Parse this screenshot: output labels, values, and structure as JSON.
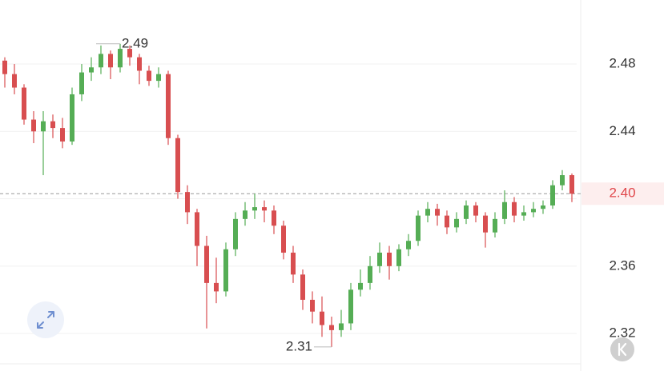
{
  "chart_data": {
    "type": "candlestick",
    "open": [
      2.482,
      2.474,
      2.466,
      2.447,
      2.44,
      2.446,
      2.442,
      2.434,
      2.462,
      2.475,
      2.478,
      2.486,
      2.478,
      2.489,
      2.484,
      2.476,
      2.47,
      2.474,
      2.436,
      2.404,
      2.392,
      2.372,
      2.35,
      2.345,
      2.37,
      2.388,
      2.393,
      2.395,
      2.393,
      2.384,
      2.368,
      2.355,
      2.34,
      2.333,
      2.325,
      2.322,
      2.326,
      2.346,
      2.35,
      2.36,
      2.368,
      2.36,
      2.37,
      2.375,
      2.39,
      2.394,
      2.39,
      2.383,
      2.388,
      2.396,
      2.39,
      2.38,
      2.388,
      2.398,
      2.39,
      2.392,
      2.394,
      2.396,
      2.408,
      2.414
    ],
    "high": [
      2.484,
      2.48,
      2.468,
      2.452,
      2.452,
      2.45,
      2.448,
      2.466,
      2.48,
      2.484,
      2.491,
      2.488,
      2.492,
      2.491,
      2.486,
      2.479,
      2.478,
      2.476,
      2.438,
      2.408,
      2.394,
      2.378,
      2.365,
      2.374,
      2.392,
      2.398,
      2.403,
      2.399,
      2.396,
      2.387,
      2.372,
      2.358,
      2.345,
      2.342,
      2.33,
      2.334,
      2.35,
      2.358,
      2.366,
      2.374,
      2.372,
      2.373,
      2.379,
      2.393,
      2.398,
      2.397,
      2.393,
      2.392,
      2.399,
      2.398,
      2.392,
      2.392,
      2.405,
      2.401,
      2.396,
      2.398,
      2.399,
      2.411,
      2.417,
      2.415
    ],
    "low": [
      2.466,
      2.462,
      2.444,
      2.433,
      2.414,
      2.436,
      2.43,
      2.432,
      2.458,
      2.47,
      2.474,
      2.471,
      2.475,
      2.479,
      2.468,
      2.467,
      2.466,
      2.432,
      2.4,
      2.385,
      2.36,
      2.323,
      2.338,
      2.342,
      2.366,
      2.384,
      2.388,
      2.386,
      2.379,
      2.364,
      2.35,
      2.334,
      2.326,
      2.318,
      2.312,
      2.318,
      2.322,
      2.342,
      2.346,
      2.356,
      2.352,
      2.357,
      2.366,
      2.372,
      2.386,
      2.384,
      2.379,
      2.38,
      2.385,
      2.386,
      2.371,
      2.377,
      2.385,
      2.386,
      2.387,
      2.389,
      2.391,
      2.394,
      2.405,
      2.398
    ],
    "close": [
      2.474,
      2.466,
      2.447,
      2.44,
      2.446,
      2.442,
      2.434,
      2.462,
      2.475,
      2.478,
      2.486,
      2.478,
      2.489,
      2.484,
      2.476,
      2.47,
      2.474,
      2.436,
      2.404,
      2.392,
      2.372,
      2.35,
      2.345,
      2.37,
      2.388,
      2.393,
      2.395,
      2.393,
      2.384,
      2.368,
      2.355,
      2.34,
      2.333,
      2.325,
      2.322,
      2.326,
      2.346,
      2.35,
      2.36,
      2.368,
      2.36,
      2.37,
      2.375,
      2.39,
      2.394,
      2.39,
      2.383,
      2.388,
      2.396,
      2.39,
      2.38,
      2.388,
      2.398,
      2.39,
      2.392,
      2.394,
      2.396,
      2.408,
      2.414,
      2.403
    ],
    "up_color": "#55ad55",
    "down_color": "#d84e50",
    "ylim": [
      2.302,
      2.518
    ],
    "yticks": [
      2.32,
      2.36,
      {
        "value": 2.4,
        "label": "2.40"
      },
      2.44,
      2.48
    ],
    "grid": true,
    "max_label": "2.49",
    "min_label": "2.31",
    "last_price": {
      "value": 2.403,
      "label": "2.40"
    },
    "last_price_color": "#e0464a"
  }
}
